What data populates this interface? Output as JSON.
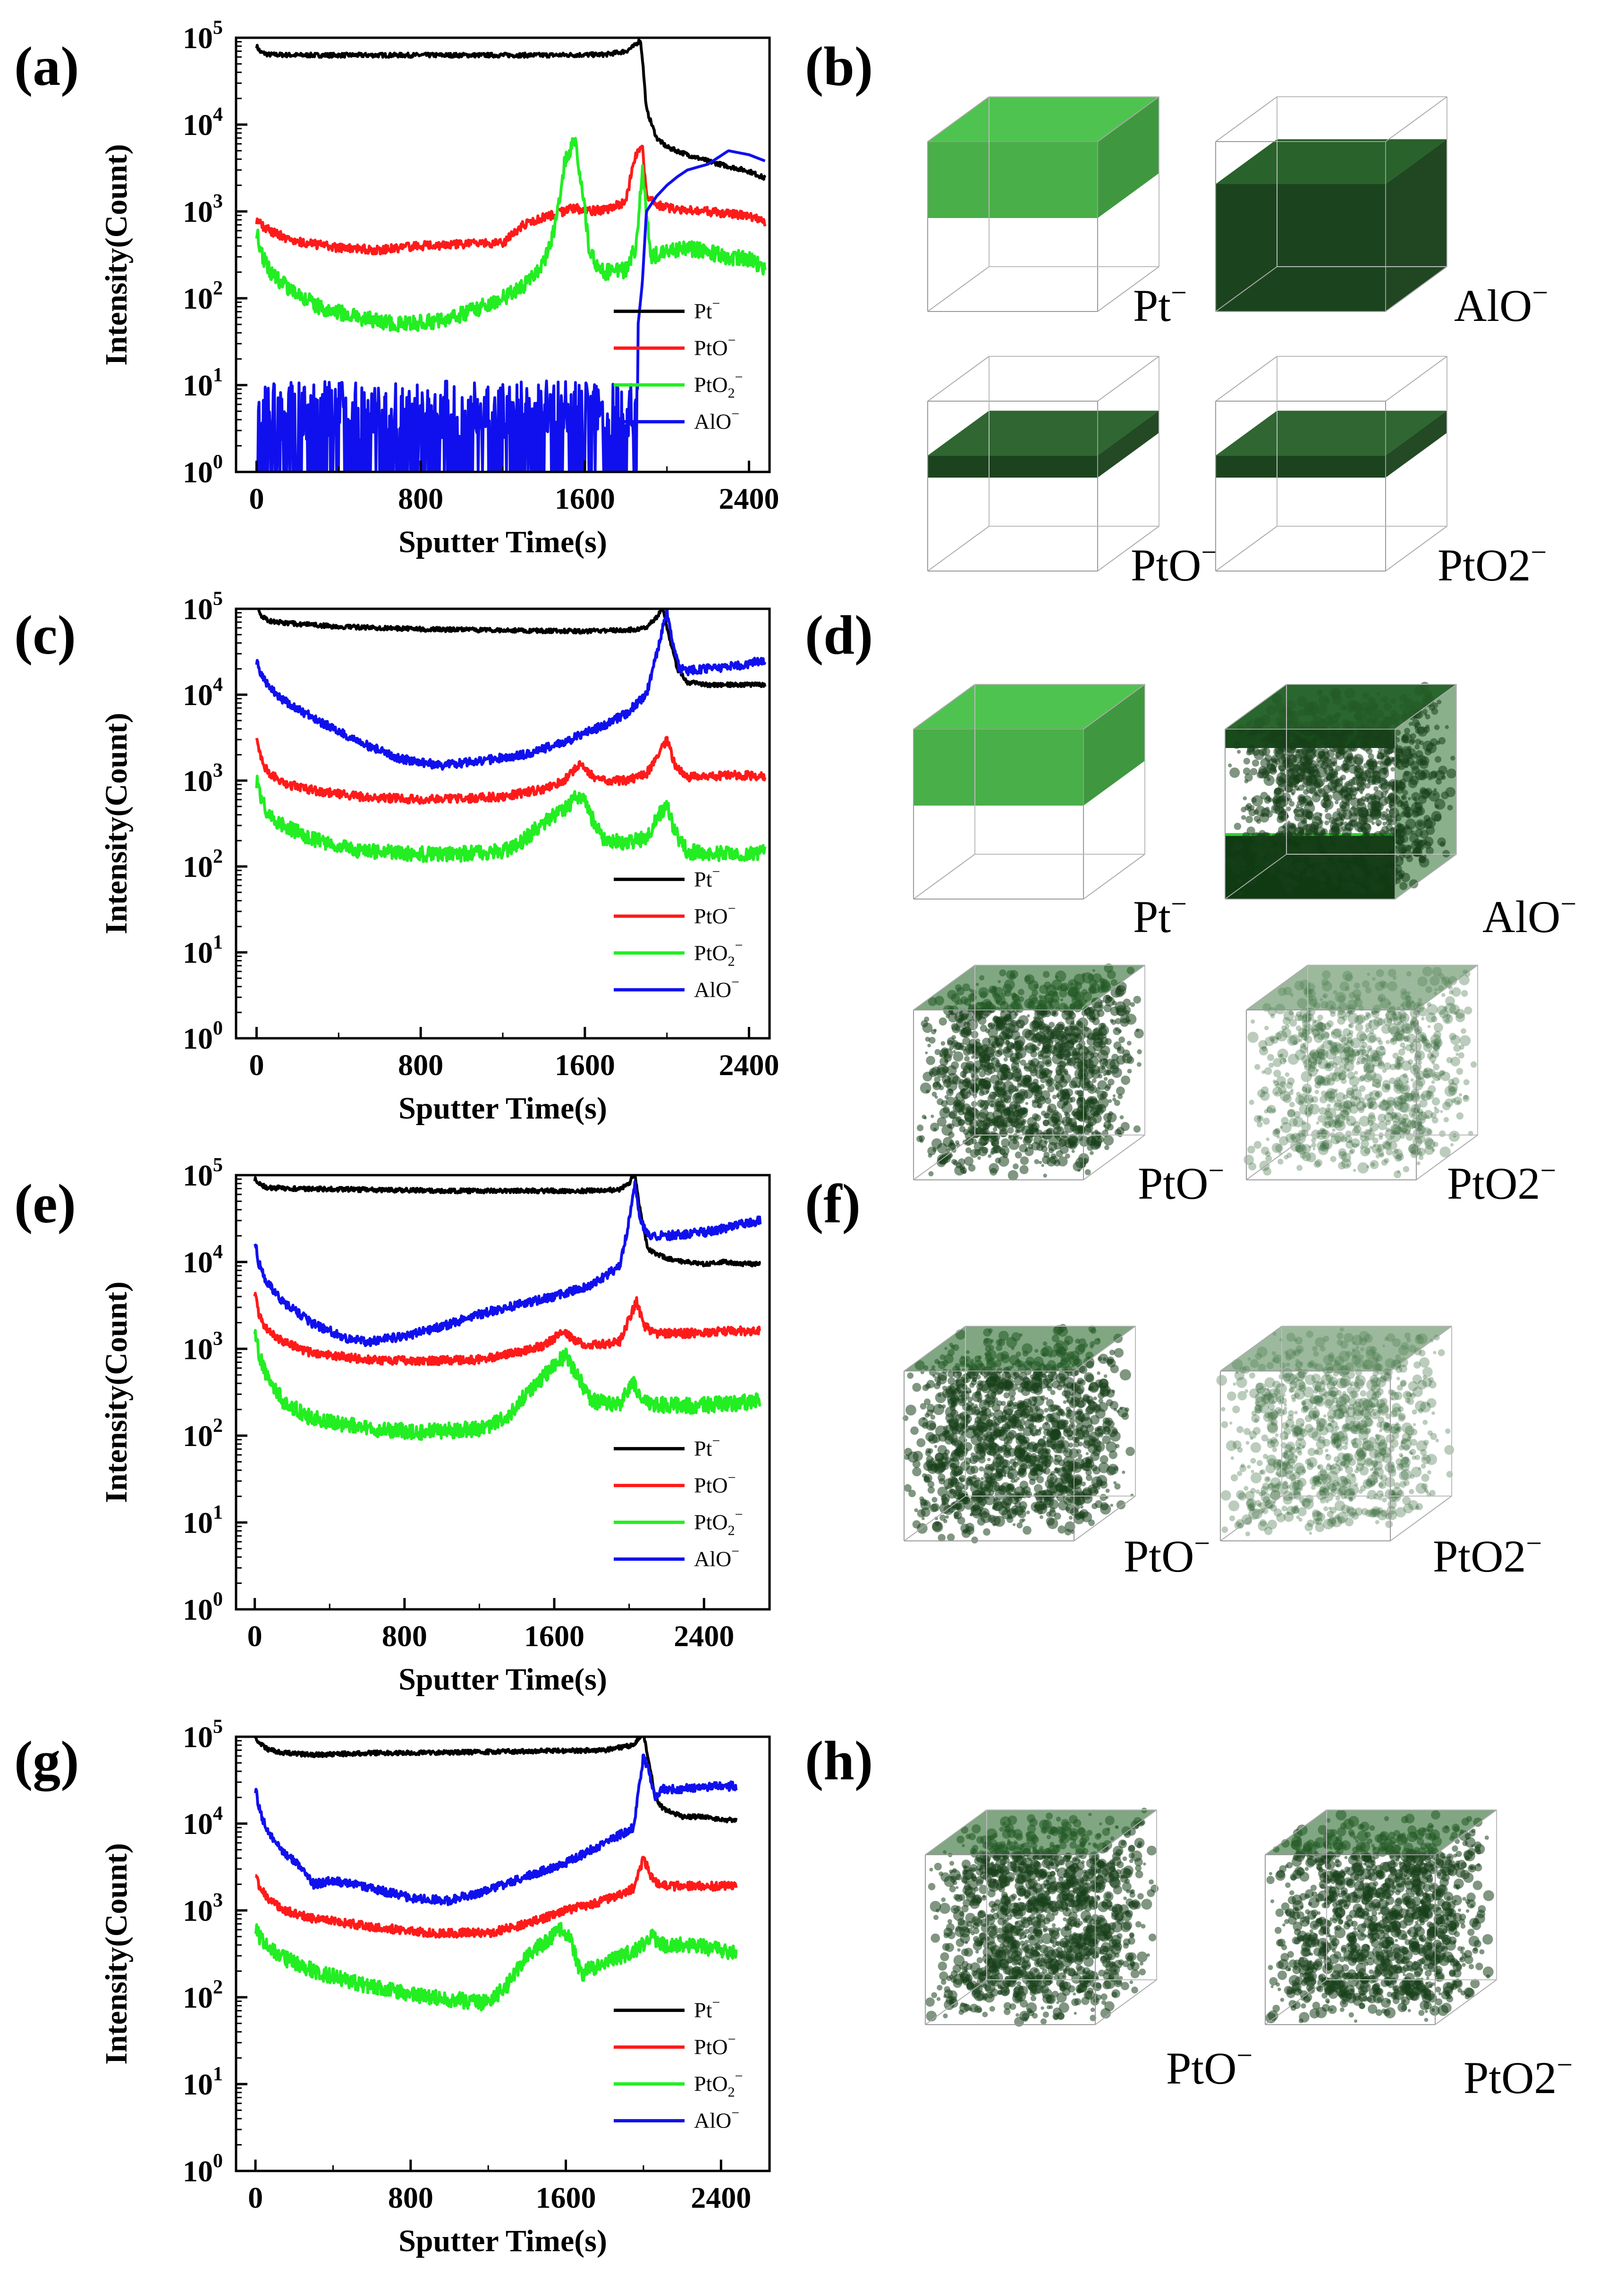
{
  "colors": {
    "pt": "#000000",
    "pto": "#ff1a1a",
    "pto2": "#22ee22",
    "alo": "#1010ee",
    "cube_green": "#2a7a2a",
    "cube_dark": "#0f3a12"
  },
  "legend_labels": {
    "pt": "Pt",
    "pto": "PtO",
    "pto2_base": "PtO",
    "pto2_sub": "2",
    "alo": "AlO",
    "minus": "−"
  },
  "chart_data": [
    {
      "panel": "(a)",
      "type": "line",
      "xlabel": "Sputter Time(s)",
      "ylabel": "Intensity(Count)",
      "yscale": "log",
      "ylim": [
        1,
        100000
      ],
      "xlim": [
        -100,
        2500
      ],
      "xticks": [
        "0",
        "800",
        "1600",
        "2400"
      ],
      "yticks_base": "10",
      "yticks_exp": [
        "0",
        "1",
        "2",
        "3",
        "4",
        "5"
      ],
      "series": [
        {
          "name": "Pt⁻",
          "key": "pt",
          "x": [
            0,
            20,
            60,
            200,
            600,
            1000,
            1400,
            1700,
            1800,
            1840,
            1870,
            1880,
            1900,
            1950,
            2000,
            2100,
            2200,
            2300,
            2400,
            2480
          ],
          "y": [
            80000,
            68000,
            64000,
            63000,
            63000,
            63000,
            63000,
            64000,
            70000,
            80000,
            95000,
            60000,
            15000,
            7000,
            5500,
            4500,
            3800,
            3300,
            2900,
            2400
          ]
        },
        {
          "name": "PtO⁻",
          "key": "pto",
          "x": [
            0,
            40,
            120,
            200,
            400,
            600,
            800,
            1000,
            1200,
            1300,
            1400,
            1500,
            1550,
            1600,
            1700,
            1800,
            1840,
            1880,
            1900,
            1950,
            2000,
            2200,
            2400,
            2480
          ],
          "y": [
            800,
            650,
            520,
            450,
            380,
            360,
            400,
            420,
            430,
            700,
            850,
            1000,
            1100,
            1000,
            1050,
            1300,
            4000,
            6000,
            1500,
            1200,
            1100,
            1000,
            900,
            750
          ]
        },
        {
          "name": "PtO₂⁻",
          "key": "pto2",
          "x": [
            0,
            30,
            80,
            160,
            300,
            500,
            700,
            900,
            1000,
            1100,
            1200,
            1300,
            1400,
            1450,
            1500,
            1550,
            1580,
            1620,
            1660,
            1700,
            1800,
            1850,
            1880,
            1900,
            1920,
            2000,
            2100,
            2200,
            2300,
            2400,
            2480
          ],
          "y": [
            600,
            300,
            180,
            130,
            80,
            60,
            50,
            55,
            65,
            80,
            100,
            140,
            250,
            600,
            3500,
            7000,
            2500,
            400,
            220,
            200,
            210,
            400,
            3000,
            1000,
            300,
            350,
            380,
            340,
            300,
            280,
            220
          ]
        },
        {
          "name": "AlO⁻",
          "key": "alo",
          "x": [
            0,
            40,
            80,
            130,
            180,
            240,
            300,
            360,
            420,
            480,
            540,
            600,
            700,
            800,
            900,
            1000,
            1100,
            1200,
            1300,
            1400,
            1500,
            1600,
            1700,
            1750,
            1800,
            1850,
            1880,
            1900,
            1950,
            2000,
            2050,
            2100,
            2200,
            2300,
            2400,
            2480
          ],
          "y": [
            6,
            4,
            8,
            3,
            6,
            2,
            5,
            3,
            4,
            2,
            3,
            2,
            2,
            3,
            2,
            2,
            3,
            2,
            3,
            2,
            3,
            2,
            3,
            4,
            8,
            30,
            150,
            1000,
            1500,
            2000,
            2500,
            3000,
            3500,
            5000,
            4500,
            3800
          ]
        }
      ]
    },
    {
      "panel": "(c)",
      "type": "line",
      "xlabel": "Sputter Time(s)",
      "ylabel": "Intensity(Count)",
      "yscale": "log",
      "ylim": [
        1,
        100000
      ],
      "xlim": [
        -100,
        2500
      ],
      "xticks": [
        "0",
        "800",
        "1600",
        "2400"
      ],
      "yticks_base": "10",
      "yticks_exp": [
        "0",
        "1",
        "2",
        "3",
        "4",
        "5"
      ],
      "series": [
        {
          "name": "Pt⁻",
          "key": "pt",
          "x": [
            0,
            20,
            60,
            150,
            400,
            800,
            1200,
            1600,
            1800,
            1900,
            1950,
            1980,
            2000,
            2050,
            2100,
            2200,
            2300,
            2400,
            2480
          ],
          "y": [
            110000,
            85000,
            72000,
            68000,
            62000,
            58000,
            56000,
            55000,
            56000,
            60000,
            80000,
            105000,
            60000,
            20000,
            14000,
            13000,
            13000,
            13000,
            13000
          ]
        },
        {
          "name": "PtO⁻",
          "key": "pto",
          "x": [
            0,
            20,
            60,
            150,
            300,
            500,
            800,
            1000,
            1200,
            1400,
            1500,
            1580,
            1640,
            1700,
            1800,
            1900,
            1960,
            2000,
            2040,
            2100,
            2200,
            2300,
            2400,
            2480
          ],
          "y": [
            3500,
            1800,
            1200,
            900,
            750,
            650,
            600,
            620,
            650,
            800,
            1000,
            1600,
            1100,
            1000,
            1000,
            1200,
            2000,
            3000,
            1500,
            1100,
            1100,
            1150,
            1150,
            1100
          ]
        },
        {
          "name": "PtO₂⁻",
          "key": "pto2",
          "x": [
            0,
            20,
            60,
            150,
            300,
            500,
            800,
            1000,
            1200,
            1300,
            1400,
            1500,
            1560,
            1600,
            1650,
            1700,
            1800,
            1900,
            1960,
            2000,
            2040,
            2100,
            2200,
            2300,
            2400,
            2480
          ],
          "y": [
            1000,
            600,
            400,
            280,
            200,
            150,
            140,
            140,
            150,
            200,
            330,
            450,
            650,
            600,
            300,
            200,
            190,
            210,
            400,
            500,
            250,
            150,
            140,
            140,
            140,
            150
          ]
        },
        {
          "name": "AlO⁻",
          "key": "alo",
          "x": [
            0,
            20,
            60,
            150,
            300,
            500,
            700,
            900,
            1100,
            1300,
            1500,
            1700,
            1800,
            1900,
            1950,
            1980,
            2000,
            2030,
            2060,
            2100,
            2200,
            2300,
            2400,
            2480
          ],
          "y": [
            25000,
            18000,
            12000,
            8000,
            5000,
            2800,
            1800,
            1500,
            1700,
            2000,
            2800,
            4500,
            6000,
            10000,
            30000,
            60000,
            90000,
            40000,
            20000,
            19000,
            20000,
            21000,
            23000,
            26000
          ]
        }
      ]
    },
    {
      "panel": "(e)",
      "type": "line",
      "xlabel": "Sputter Time(s)",
      "ylabel": "Intensity(Count)",
      "yscale": "log",
      "ylim": [
        1,
        100000
      ],
      "xlim": [
        -100,
        2750
      ],
      "xticks": [
        "0",
        "800",
        "1600",
        "2400"
      ],
      "yticks_base": "10",
      "yticks_exp": [
        "0",
        "1",
        "2",
        "3",
        "4",
        "5"
      ],
      "series": [
        {
          "name": "Pt⁻",
          "key": "pt",
          "x": [
            0,
            20,
            60,
            200,
            600,
            1000,
            1400,
            1800,
            1950,
            2000,
            2030,
            2050,
            2100,
            2200,
            2300,
            2400,
            2500,
            2600,
            2700
          ],
          "y": [
            90000,
            80000,
            72000,
            70000,
            68000,
            66000,
            66000,
            66000,
            68000,
            80000,
            110000,
            50000,
            14000,
            11000,
            10000,
            9500,
            10000,
            9500,
            9500
          ]
        },
        {
          "name": "PtO⁻",
          "key": "pto",
          "x": [
            0,
            20,
            60,
            150,
            300,
            600,
            900,
            1200,
            1400,
            1550,
            1650,
            1720,
            1800,
            1950,
            2010,
            2040,
            2080,
            2150,
            2300,
            2500,
            2700
          ],
          "y": [
            4500,
            2500,
            1700,
            1200,
            900,
            750,
            720,
            750,
            900,
            1100,
            1600,
            1200,
            1100,
            1200,
            2500,
            3500,
            1800,
            1500,
            1500,
            1600,
            1600
          ]
        },
        {
          "name": "PtO₂⁻",
          "key": "pto2",
          "x": [
            0,
            20,
            60,
            150,
            300,
            600,
            900,
            1200,
            1350,
            1450,
            1550,
            1620,
            1660,
            1720,
            1800,
            1950,
            2020,
            2060,
            2120,
            2300,
            2500,
            2700
          ],
          "y": [
            1800,
            900,
            500,
            250,
            160,
            120,
            110,
            120,
            160,
            300,
            500,
            700,
            850,
            500,
            250,
            230,
            400,
            300,
            230,
            220,
            230,
            250
          ]
        },
        {
          "name": "AlO⁻",
          "key": "alo",
          "x": [
            0,
            20,
            60,
            150,
            300,
            500,
            600,
            800,
            1000,
            1200,
            1400,
            1600,
            1800,
            1950,
            2000,
            2030,
            2060,
            2100,
            2200,
            2300,
            2400,
            2500,
            2600,
            2700
          ],
          "y": [
            18000,
            10000,
            6000,
            3500,
            2000,
            1300,
            1200,
            1400,
            1800,
            2500,
            3200,
            4000,
            5500,
            9000,
            30000,
            80000,
            30000,
            20000,
            20000,
            21000,
            22000,
            24000,
            27000,
            30000
          ]
        }
      ]
    },
    {
      "panel": "(g)",
      "type": "line",
      "xlabel": "Sputter Time(s)",
      "ylabel": "Intensity(Count)",
      "yscale": "log",
      "ylim": [
        1,
        100000
      ],
      "xlim": [
        -100,
        2650
      ],
      "xticks": [
        "0",
        "800",
        "1600",
        "2400"
      ],
      "yticks_base": "10",
      "yticks_exp": [
        "0",
        "1",
        "2",
        "3",
        "4",
        "5"
      ],
      "series": [
        {
          "name": "Pt⁻",
          "key": "pt",
          "x": [
            0,
            20,
            60,
            150,
            300,
            600,
            1000,
            1400,
            1800,
            1950,
            2000,
            2030,
            2060,
            2100,
            2200,
            2300,
            2400,
            2480
          ],
          "y": [
            100000,
            85000,
            72000,
            65000,
            62000,
            65000,
            66000,
            68000,
            70000,
            80000,
            110000,
            50000,
            20000,
            15000,
            12000,
            12000,
            11000,
            11000
          ]
        },
        {
          "name": "PtO⁻",
          "key": "pto",
          "x": [
            0,
            20,
            60,
            150,
            300,
            600,
            900,
            1200,
            1400,
            1600,
            1800,
            1950,
            2000,
            2040,
            2080,
            2150,
            2300,
            2480
          ],
          "y": [
            2800,
            1900,
            1400,
            1000,
            800,
            650,
            550,
            550,
            700,
            1000,
            1300,
            1800,
            4000,
            2500,
            2000,
            1900,
            1900,
            1900
          ]
        },
        {
          "name": "PtO₂⁻",
          "key": "pto2",
          "x": [
            0,
            20,
            60,
            150,
            300,
            500,
            700,
            900,
            1100,
            1200,
            1300,
            1400,
            1500,
            1580,
            1620,
            1660,
            1680,
            1700,
            1800,
            1900,
            2000,
            2050,
            2100,
            2200,
            2300,
            2400,
            2480
          ],
          "y": [
            700,
            500,
            380,
            280,
            200,
            150,
            120,
            100,
            90,
            85,
            140,
            300,
            450,
            600,
            500,
            250,
            180,
            200,
            250,
            300,
            400,
            500,
            400,
            400,
            380,
            350,
            330
          ]
        },
        {
          "name": "AlO⁻",
          "key": "alo",
          "x": [
            0,
            20,
            60,
            150,
            250,
            300,
            400,
            600,
            800,
            1000,
            1200,
            1400,
            1600,
            1800,
            1950,
            2000,
            2030,
            2060,
            2100,
            2200,
            2300,
            2400,
            2480
          ],
          "y": [
            25000,
            15000,
            8000,
            4500,
            3000,
            2000,
            2200,
            1800,
            1400,
            1300,
            1700,
            2500,
            3500,
            6000,
            9000,
            60000,
            40000,
            20000,
            25000,
            25000,
            26000,
            27000,
            27000
          ]
        }
      ]
    }
  ],
  "cube_panels": [
    {
      "panel": "(b)",
      "cubes": [
        {
          "label": "Pt",
          "sub": "",
          "sup": "−"
        },
        {
          "label": "AlO",
          "sub": "",
          "sup": "−"
        },
        {
          "label": "PtO",
          "sub": "",
          "sup": "−"
        },
        {
          "label": "PtO2",
          "sub": "",
          "sup": "−"
        }
      ]
    },
    {
      "panel": "(d)",
      "cubes": [
        {
          "label": "Pt",
          "sub": "",
          "sup": "−"
        },
        {
          "label": "AlO",
          "sub": "",
          "sup": "−"
        },
        {
          "label": "PtO",
          "sub": "",
          "sup": "−"
        },
        {
          "label": "PtO2",
          "sub": "",
          "sup": "−"
        }
      ]
    },
    {
      "panel": "(f)",
      "cubes": [
        {
          "label": "PtO",
          "sub": "",
          "sup": "−"
        },
        {
          "label": "PtO2",
          "sub": "",
          "sup": "−"
        }
      ]
    },
    {
      "panel": "(h)",
      "cubes": [
        {
          "label": "PtO",
          "sub": "",
          "sup": "−"
        },
        {
          "label": "PtO2",
          "sub": "",
          "sup": "−"
        }
      ]
    }
  ]
}
